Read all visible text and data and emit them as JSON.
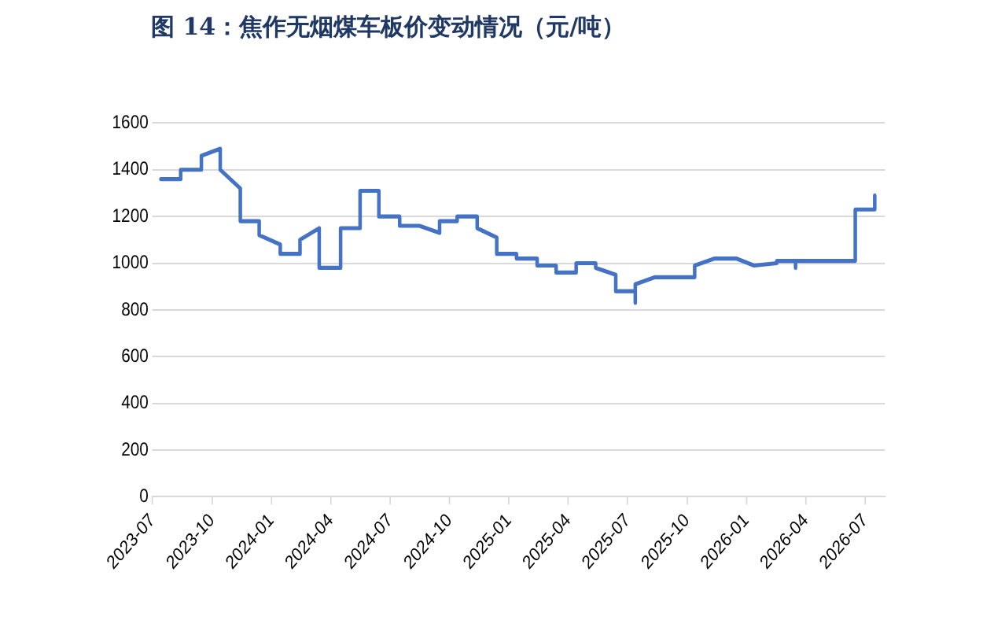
{
  "chart_data": {
    "type": "line",
    "title": "图 14：焦作无烟煤车板价变动情况（元/吨）",
    "series": [
      {
        "color": "#4472c4",
        "x": [
          "2023-07-14",
          "2023-08-14",
          "2023-08-14",
          "2023-09-15",
          "2023-09-15",
          "2023-10-14",
          "2023-10-14",
          "2023-11-14",
          "2023-11-14",
          "2023-12-13",
          "2023-12-13",
          "2024-01-15",
          "2024-01-15",
          "2024-02-14",
          "2024-02-14",
          "2024-03-14",
          "2024-03-14",
          "2024-04-16",
          "2024-04-16",
          "2024-05-16",
          "2024-05-16",
          "2024-06-14",
          "2024-06-14",
          "2024-07-16",
          "2024-07-16",
          "2024-08-16",
          "2024-09-16",
          "2024-09-16",
          "2024-10-13",
          "2024-10-13",
          "2024-11-13",
          "2024-11-13",
          "2024-12-13",
          "2024-12-13",
          "2025-01-13",
          "2025-01-13",
          "2025-02-13",
          "2025-02-13",
          "2025-03-13",
          "2025-03-13",
          "2025-04-13",
          "2025-04-13",
          "2025-05-13",
          "2025-05-13",
          "2025-06-13",
          "2025-06-13",
          "2025-07-13",
          "2025-07-13",
          "2025-07-13",
          "2025-08-13",
          "2025-10-13",
          "2025-10-13",
          "2025-11-13",
          "2025-12-16",
          "2026-01-13",
          "2026-02-16",
          "2026-02-16",
          "2026-03-16",
          "2026-03-16",
          "2026-03-16",
          "2026-06-16",
          "2026-06-16",
          "2026-07-16",
          "2026-07-16"
        ],
        "values": [
          1360,
          1360,
          1400,
          1400,
          1460,
          1490,
          1400,
          1320,
          1180,
          1180,
          1120,
          1080,
          1040,
          1040,
          1100,
          1150,
          980,
          980,
          1150,
          1150,
          1310,
          1310,
          1200,
          1200,
          1160,
          1160,
          1130,
          1180,
          1180,
          1200,
          1200,
          1150,
          1110,
          1040,
          1040,
          1020,
          1020,
          990,
          990,
          960,
          960,
          1000,
          1000,
          980,
          950,
          880,
          880,
          830,
          910,
          940,
          940,
          990,
          1020,
          1020,
          990,
          1000,
          1010,
          1010,
          980,
          1010,
          1010,
          1230,
          1230,
          1290
        ]
      }
    ],
    "xlim": [
      "2023-07-01",
      "2026-08-01"
    ],
    "xticks": [
      "2023-07",
      "2023-10",
      "2024-01",
      "2024-04",
      "2024-07",
      "2024-10",
      "2025-01",
      "2025-04",
      "2025-07",
      "2025-10",
      "2026-01",
      "2026-04",
      "2026-07"
    ],
    "ylim": [
      0,
      1600
    ],
    "yticks": [
      0,
      200,
      400,
      600,
      800,
      1000,
      1200,
      1400,
      1600
    ],
    "grid": "y",
    "legend": false,
    "marker": "none",
    "line_style": "solid"
  }
}
